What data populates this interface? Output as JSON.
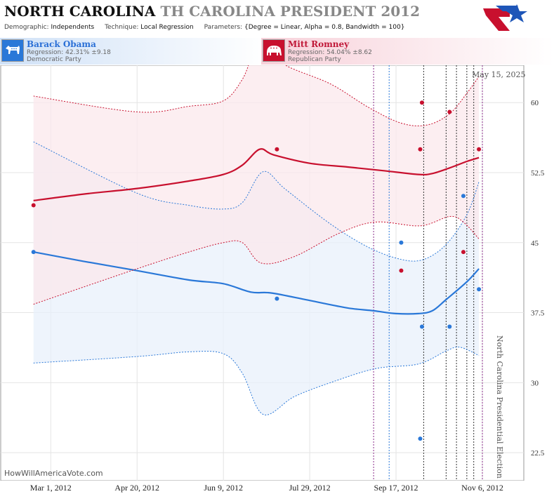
{
  "header": {
    "state": "NORTH CAROLINA",
    "race": "TH CAROLINA PRESIDENT 2012",
    "params": {
      "demographic_key": "Demographic:",
      "demographic_val": "Independents",
      "technique_key": "Technique:",
      "technique_val": "Local Regression",
      "parameters_key": "Parameters:",
      "parameters_val": "{Degree = Linear, Alpha = 0.8, Bandwidth = 100}"
    }
  },
  "candidates": {
    "dem": {
      "name": "Barack Obama",
      "regression": "Regression: 42.31% ±9.18",
      "party": "Democratic Party",
      "icon": "donkey-icon",
      "color": "#2a78d8"
    },
    "rep": {
      "name": "Mitt Romney",
      "regression": "Regression: 54.04% ±8.62",
      "party": "Republican Party",
      "icon": "elephant-icon",
      "color": "#c8102e"
    }
  },
  "today_label": "May 15, 2025",
  "election_label": "North Carolina Presidential Election",
  "watermark": "HowWillAmericaVote.com",
  "colors": {
    "dem": "#2a78d8",
    "rep": "#c8102e",
    "dem_band": "#e8f0fb",
    "rep_band": "#fbe8ec"
  },
  "chart_data": {
    "type": "line",
    "ylim": [
      19.5,
      64
    ],
    "y_ticks": [
      22.5,
      30,
      37.5,
      45,
      52.5,
      60
    ],
    "x_ticks": [
      {
        "date": "2012-03-01",
        "label": "Mar 1, 2012"
      },
      {
        "date": "2012-04-20",
        "label": "Apr 20, 2012"
      },
      {
        "date": "2012-06-09",
        "label": "Jun 9, 2012"
      },
      {
        "date": "2012-07-29",
        "label": "Jul 29, 2012"
      },
      {
        "date": "2012-09-17",
        "label": "Sep 17, 2012"
      },
      {
        "date": "2012-11-06",
        "label": "Nov 6, 2012"
      }
    ],
    "xlim": [
      "2012-02-01",
      "2012-11-30"
    ],
    "event_lines_purple": [
      "2012-09-04",
      "2012-11-06"
    ],
    "event_lines_blue": [
      "2012-09-13"
    ],
    "event_lines_black": [
      "2012-10-03",
      "2012-10-16",
      "2012-10-22",
      "2012-10-28",
      "2012-11-01"
    ],
    "series": [
      {
        "name": "Barack Obama",
        "color": "#2a78d8",
        "trend": [
          [
            "2012-02-20",
            44.0
          ],
          [
            "2012-03-20",
            43.0
          ],
          [
            "2012-04-20",
            42.0
          ],
          [
            "2012-05-20",
            41.0
          ],
          [
            "2012-06-09",
            40.6
          ],
          [
            "2012-06-25",
            39.7
          ],
          [
            "2012-07-07",
            39.6
          ],
          [
            "2012-07-29",
            38.8
          ],
          [
            "2012-08-20",
            38.0
          ],
          [
            "2012-09-04",
            37.7
          ],
          [
            "2012-09-17",
            37.4
          ],
          [
            "2012-09-30",
            37.4
          ],
          [
            "2012-10-08",
            37.7
          ],
          [
            "2012-10-16",
            38.9
          ],
          [
            "2012-10-28",
            40.8
          ],
          [
            "2012-11-04",
            42.2
          ]
        ],
        "upper": [
          [
            "2012-02-20",
            55.8
          ],
          [
            "2012-04-20",
            50.3
          ],
          [
            "2012-05-20",
            49.0
          ],
          [
            "2012-06-09",
            48.6
          ],
          [
            "2012-06-20",
            49.3
          ],
          [
            "2012-07-02",
            52.6
          ],
          [
            "2012-07-15",
            50.7
          ],
          [
            "2012-08-10",
            47.0
          ],
          [
            "2012-09-01",
            44.5
          ],
          [
            "2012-09-20",
            43.2
          ],
          [
            "2012-10-03",
            43.2
          ],
          [
            "2012-10-16",
            44.8
          ],
          [
            "2012-10-28",
            48.0
          ],
          [
            "2012-11-04",
            51.5
          ]
        ],
        "lower": [
          [
            "2012-02-20",
            32.1
          ],
          [
            "2012-04-20",
            32.8
          ],
          [
            "2012-05-20",
            33.3
          ],
          [
            "2012-06-09",
            33.1
          ],
          [
            "2012-06-20",
            31.0
          ],
          [
            "2012-07-02",
            26.6
          ],
          [
            "2012-07-20",
            28.5
          ],
          [
            "2012-08-10",
            30.0
          ],
          [
            "2012-09-05",
            31.5
          ],
          [
            "2012-09-30",
            32.0
          ],
          [
            "2012-10-16",
            33.4
          ],
          [
            "2012-10-24",
            33.8
          ],
          [
            "2012-11-04",
            32.9
          ]
        ],
        "points": [
          [
            "2012-02-20",
            44.0
          ],
          [
            "2012-07-10",
            39.0
          ],
          [
            "2012-09-20",
            45.0
          ],
          [
            "2012-10-02",
            36.0
          ],
          [
            "2012-10-01",
            24.0
          ],
          [
            "2012-10-18",
            36.0
          ],
          [
            "2012-10-26",
            50.0
          ],
          [
            "2012-11-04",
            40.0
          ]
        ]
      },
      {
        "name": "Mitt Romney",
        "color": "#c8102e",
        "trend": [
          [
            "2012-02-20",
            49.5
          ],
          [
            "2012-03-20",
            50.2
          ],
          [
            "2012-04-20",
            50.8
          ],
          [
            "2012-05-20",
            51.6
          ],
          [
            "2012-06-09",
            52.3
          ],
          [
            "2012-06-20",
            53.3
          ],
          [
            "2012-06-30",
            55.0
          ],
          [
            "2012-07-08",
            54.4
          ],
          [
            "2012-07-29",
            53.5
          ],
          [
            "2012-08-20",
            53.1
          ],
          [
            "2012-09-10",
            52.7
          ],
          [
            "2012-09-30",
            52.3
          ],
          [
            "2012-10-08",
            52.4
          ],
          [
            "2012-10-18",
            53.0
          ],
          [
            "2012-10-28",
            53.7
          ],
          [
            "2012-11-04",
            54.1
          ]
        ],
        "upper": [
          [
            "2012-02-20",
            60.7
          ],
          [
            "2012-04-20",
            59.0
          ],
          [
            "2012-05-20",
            59.6
          ],
          [
            "2012-06-09",
            60.2
          ],
          [
            "2012-06-20",
            62.5
          ],
          [
            "2012-06-30",
            66.2
          ],
          [
            "2012-07-15",
            64.0
          ],
          [
            "2012-08-10",
            62.0
          ],
          [
            "2012-09-01",
            59.5
          ],
          [
            "2012-09-20",
            57.8
          ],
          [
            "2012-10-05",
            57.6
          ],
          [
            "2012-10-18",
            58.8
          ],
          [
            "2012-10-28",
            61.0
          ],
          [
            "2012-11-04",
            62.8
          ]
        ],
        "lower": [
          [
            "2012-02-20",
            38.4
          ],
          [
            "2012-04-20",
            42.2
          ],
          [
            "2012-05-20",
            44.0
          ],
          [
            "2012-06-09",
            45.0
          ],
          [
            "2012-06-20",
            45.0
          ],
          [
            "2012-07-01",
            42.8
          ],
          [
            "2012-07-20",
            43.5
          ],
          [
            "2012-08-15",
            46.0
          ],
          [
            "2012-09-05",
            47.2
          ],
          [
            "2012-10-01",
            46.8
          ],
          [
            "2012-10-18",
            47.8
          ],
          [
            "2012-10-26",
            47.2
          ],
          [
            "2012-11-04",
            45.4
          ]
        ],
        "points": [
          [
            "2012-02-20",
            49.0
          ],
          [
            "2012-07-10",
            55.0
          ],
          [
            "2012-09-20",
            42.0
          ],
          [
            "2012-10-01",
            55.0
          ],
          [
            "2012-10-02",
            60.0
          ],
          [
            "2012-10-18",
            59.0
          ],
          [
            "2012-10-26",
            44.0
          ],
          [
            "2012-11-04",
            55.0
          ]
        ]
      }
    ]
  }
}
